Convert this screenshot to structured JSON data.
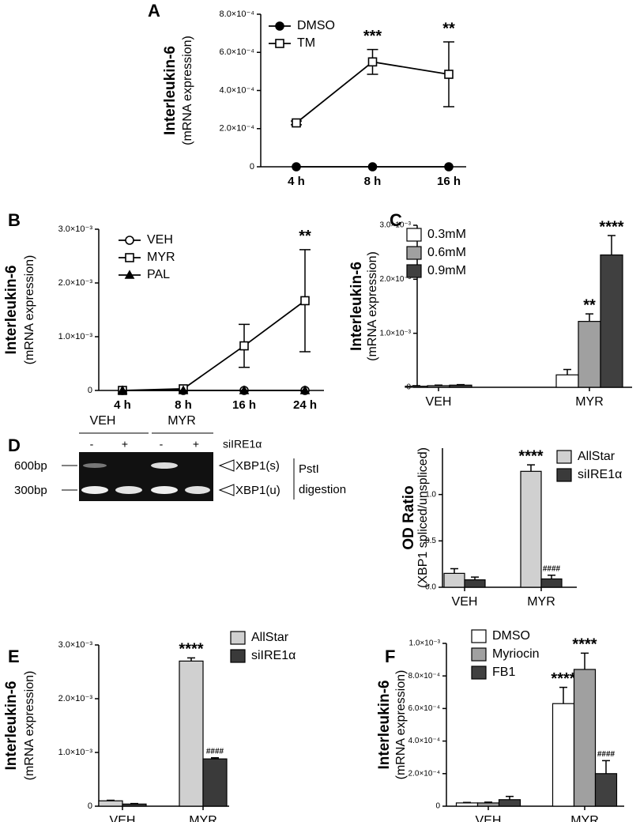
{
  "chart_data": [
    {
      "type": "line",
      "panel": "A",
      "ylabel": "Interleukin-6",
      "ylabel_sub": "(mRNA expression)",
      "categories": [
        "4 h",
        "8 h",
        "16 h"
      ],
      "series": [
        {
          "name": "DMSO",
          "color": "#000000",
          "marker": "circle",
          "marker_filled": true,
          "values": [
            0,
            0,
            0
          ],
          "errors": [
            0,
            0,
            0
          ],
          "annotations": [
            null,
            null,
            null
          ]
        },
        {
          "name": "TM",
          "color": "#000000",
          "marker": "square",
          "marker_filled": false,
          "values": [
            0.00023,
            0.00055,
            0.000485
          ],
          "errors": [
            1e-05,
            6.5e-05,
            0.00017
          ],
          "annotations": [
            null,
            "***",
            "**"
          ]
        }
      ],
      "ylim": [
        0,
        0.0008
      ],
      "yticks": [
        0,
        {
          "value": 0.0002,
          "label": "2.0×10⁻⁴"
        },
        {
          "value": 0.0004,
          "label": "4.0×10⁻⁴"
        },
        {
          "value": 0.0006,
          "label": "6.0×10⁻⁴"
        },
        {
          "value": 0.0008,
          "label": "8.0×10⁻⁴"
        }
      ]
    },
    {
      "type": "line",
      "panel": "B",
      "ylabel": "Interleukin-6",
      "ylabel_sub": "(mRNA expression)",
      "categories": [
        "4 h",
        "8 h",
        "16 h",
        "24 h"
      ],
      "series": [
        {
          "name": "VEH",
          "color": "#000000",
          "marker": "circle",
          "marker_filled": false,
          "values": [
            0,
            0,
            0,
            0
          ],
          "errors": [
            0,
            0,
            0,
            0
          ],
          "annotations": [
            null,
            null,
            null,
            null
          ]
        },
        {
          "name": "MYR",
          "color": "#000000",
          "marker": "square",
          "marker_filled": false,
          "values": [
            0,
            3e-05,
            0.00083,
            0.00167
          ],
          "errors": [
            0,
            0,
            0.0004,
            0.00095
          ],
          "annotations": [
            null,
            null,
            null,
            "**"
          ]
        },
        {
          "name": "PAL",
          "color": "#000000",
          "marker": "triangle",
          "marker_filled": true,
          "values": [
            0,
            0,
            0,
            0
          ],
          "errors": [
            0,
            0,
            0,
            0
          ],
          "annotations": [
            null,
            null,
            null,
            null
          ]
        }
      ],
      "ylim": [
        0,
        0.003
      ],
      "yticks": [
        0,
        {
          "value": 0.001,
          "label": "1.0×10⁻³"
        },
        {
          "value": 0.002,
          "label": "2.0×10⁻³"
        },
        {
          "value": 0.003,
          "label": "3.0×10⁻³"
        }
      ]
    },
    {
      "type": "bar",
      "panel": "C",
      "ylabel": "Interleukin-6",
      "ylabel_sub": "(mRNA expression)",
      "categories": [
        "VEH",
        "MYR"
      ],
      "series": [
        {
          "name": "0.3mM",
          "color": "#ffffff",
          "values": [
            2e-05,
            0.00023
          ],
          "errors": [
            1e-05,
            0.0001
          ],
          "annotations": [
            null,
            null
          ]
        },
        {
          "name": "0.6mM",
          "color": "#a0a0a0",
          "values": [
            3e-05,
            0.00122
          ],
          "errors": [
            1e-05,
            0.00014
          ],
          "annotations": [
            null,
            "**"
          ]
        },
        {
          "name": "0.9mM",
          "color": "#404040",
          "values": [
            4e-05,
            0.00245
          ],
          "errors": [
            1e-05,
            0.00036
          ],
          "annotations": [
            null,
            "****"
          ]
        }
      ],
      "ylim": [
        0,
        0.003
      ],
      "yticks": [
        0,
        {
          "value": 0.001,
          "label": "1.0×10⁻³"
        },
        {
          "value": 0.002,
          "label": "2.0×10⁻³"
        },
        {
          "value": 0.003,
          "label": "3.0×10⁻³"
        }
      ]
    },
    {
      "type": "bar",
      "panel": "D",
      "ylabel": "OD Ratio",
      "ylabel_sub": "(XBP1 spliced/unspliced)",
      "categories": [
        "VEH",
        "MYR"
      ],
      "series": [
        {
          "name": "AllStar",
          "color": "#d0d0d0",
          "values": [
            0.15,
            1.25
          ],
          "errors": [
            0.05,
            0.07
          ],
          "annotations": [
            null,
            "****"
          ]
        },
        {
          "name": "siIRE1α",
          "color": "#3a3a3a",
          "values": [
            0.08,
            0.09
          ],
          "errors": [
            0.03,
            0.04
          ],
          "annotations": [
            null,
            "####"
          ]
        }
      ],
      "ylim": [
        0,
        1.5
      ],
      "yticks": [
        {
          "value": 0,
          "label": "0.0"
        },
        {
          "value": 0.5,
          "label": "0.5"
        },
        {
          "value": 1,
          "label": "1.0"
        }
      ]
    },
    {
      "type": "bar",
      "panel": "E",
      "ylabel": "Interleukin-6",
      "ylabel_sub": "(mRNA expression)",
      "categories": [
        "VEH",
        "MYR"
      ],
      "series": [
        {
          "name": "AllStar",
          "color": "#d0d0d0",
          "values": [
            0.0001,
            0.0027
          ],
          "errors": [
            1e-05,
            6e-05
          ],
          "annotations": [
            null,
            "****"
          ]
        },
        {
          "name": "siIRE1α",
          "color": "#3a3a3a",
          "values": [
            4e-05,
            0.00088
          ],
          "errors": [
            1e-05,
            2e-05
          ],
          "annotations": [
            null,
            "####"
          ]
        }
      ],
      "ylim": [
        0,
        0.003
      ],
      "yticks": [
        0,
        {
          "value": 0.001,
          "label": "1.0×10⁻³"
        },
        {
          "value": 0.002,
          "label": "2.0×10⁻³"
        },
        {
          "value": 0.003,
          "label": "3.0×10⁻³"
        }
      ]
    },
    {
      "type": "bar",
      "panel": "F",
      "ylabel": "Interleukin-6",
      "ylabel_sub": "(mRNA expression)",
      "categories": [
        "VEH",
        "MYR"
      ],
      "series": [
        {
          "name": "DMSO",
          "color": "#ffffff",
          "values": [
            2e-05,
            0.00063
          ],
          "errors": [
            3e-06,
            0.0001
          ],
          "annotations": [
            null,
            "****"
          ]
        },
        {
          "name": "Myriocin",
          "color": "#a0a0a0",
          "values": [
            2e-05,
            0.00084
          ],
          "errors": [
            5e-06,
            0.0001
          ],
          "annotations": [
            null,
            "****"
          ]
        },
        {
          "name": "FB1",
          "color": "#404040",
          "values": [
            4e-05,
            0.0002
          ],
          "errors": [
            2e-05,
            8e-05
          ],
          "annotations": [
            null,
            "####"
          ]
        }
      ],
      "ylim": [
        0,
        0.001
      ],
      "yticks": [
        0,
        {
          "value": 0.0002,
          "label": "2.0×10⁻⁴"
        },
        {
          "value": 0.0004,
          "label": "4.0×10⁻⁴"
        },
        {
          "value": 0.0006,
          "label": "6.0×10⁻⁴"
        },
        {
          "value": 0.0008,
          "label": "8.0×10⁻⁴"
        },
        {
          "value": 0.001,
          "label": "1.0×10⁻³"
        }
      ]
    }
  ],
  "gel": {
    "groups": [
      "VEH",
      "MYR"
    ],
    "treatment": "siIRE1α",
    "lanes": [
      "-",
      "+",
      "-",
      "+"
    ],
    "markers": [
      "600bp",
      "300bp"
    ],
    "bands": [
      "XBP1(s)",
      "XBP1(u)"
    ],
    "note": [
      "PstI",
      "digestion"
    ]
  }
}
